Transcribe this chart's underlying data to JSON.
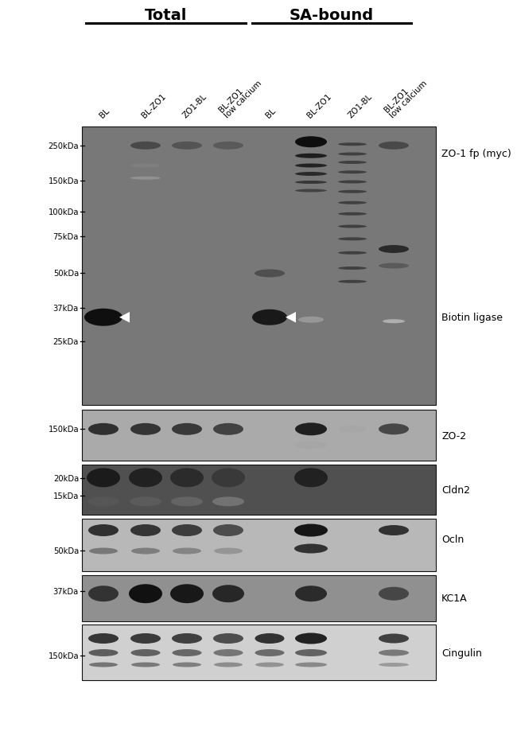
{
  "bg_white": "#ffffff",
  "total_label": "Total",
  "sa_label": "SA-bound",
  "col_labels": [
    "BL",
    "BL-ZO1",
    "ZO1-BL",
    "BL-ZO1\nlow calcium",
    "BL",
    "BL-ZO1",
    "ZO1-BL",
    "BL-ZO1\nlow calcium"
  ],
  "right_labels": {
    "zo1fp": "ZO-1 fp (myc)",
    "biotin": "Biotin ligase",
    "zo2": "ZO-2",
    "cldn2": "Cldn2",
    "ocln": "Ocln",
    "kc1a": "KC1A",
    "cingulin": "Cingulin"
  },
  "mw_main": [
    [
      "250kDa",
      0.068
    ],
    [
      "150kDa",
      0.195
    ],
    [
      "100kDa",
      0.307
    ],
    [
      "75kDa",
      0.393
    ],
    [
      "50kDa",
      0.527
    ],
    [
      "37kDa",
      0.652
    ],
    [
      "25kDa",
      0.772
    ]
  ],
  "mw_zo2": [
    [
      "150kDa",
      0.38
    ]
  ],
  "mw_cldn2": [
    [
      "20kDa",
      0.27
    ],
    [
      "15kDa",
      0.62
    ]
  ],
  "mw_ocln": [
    [
      "50kDa",
      0.6
    ]
  ],
  "mw_kc1a": [
    [
      "37kDa",
      0.35
    ]
  ],
  "mw_cing": [
    [
      "150kDa",
      0.56
    ]
  ],
  "panel_bg_main": "#787878",
  "panel_bg_zo2": "#aaaaaa",
  "panel_bg_cldn2": "#505050",
  "panel_bg_ocln": "#b8b8b8",
  "panel_bg_kc1a": "#909090",
  "panel_bg_cing": "#d0d0d0"
}
